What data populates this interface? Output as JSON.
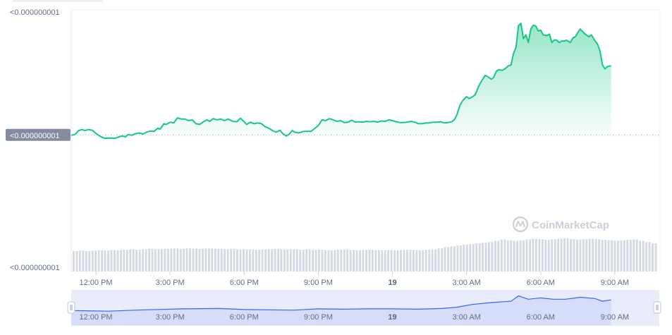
{
  "chart_data": {
    "type": "area",
    "y_axis_labels": [
      "<0.000000001",
      "<0.000000001"
    ],
    "current_price_label": "<0.000000001",
    "volume_axis_label": "<0.000000001",
    "x_ticks": [
      {
        "t": 1.0,
        "label": "12:00 PM",
        "bold": false
      },
      {
        "t": 4.0,
        "label": "3:00 PM",
        "bold": false
      },
      {
        "t": 7.0,
        "label": "6:00 PM",
        "bold": false
      },
      {
        "t": 10.0,
        "label": "9:00 PM",
        "bold": false
      },
      {
        "t": 13.0,
        "label": "19",
        "bold": true
      },
      {
        "t": 16.0,
        "label": "3:00 AM",
        "bold": false
      },
      {
        "t": 19.0,
        "label": "6:00 AM",
        "bold": false
      },
      {
        "t": 22.0,
        "label": "9:00 AM",
        "bold": false
      }
    ],
    "x_range_hours": [
      0,
      23.8
    ],
    "y_range_relative": [
      0.66,
      1.31
    ],
    "reference_value": 1.0,
    "price_series": [
      [
        0.0,
        1.0
      ],
      [
        0.15,
        1.002
      ],
      [
        0.3,
        1.012
      ],
      [
        0.45,
        1.015
      ],
      [
        0.55,
        1.012
      ],
      [
        0.7,
        1.015
      ],
      [
        0.85,
        1.013
      ],
      [
        1.0,
        1.005
      ],
      [
        1.15,
        0.998
      ],
      [
        1.35,
        0.992
      ],
      [
        1.55,
        0.993
      ],
      [
        1.75,
        0.992
      ],
      [
        1.95,
        0.996
      ],
      [
        2.05,
        0.998
      ],
      [
        2.2,
        0.996
      ],
      [
        2.3,
        1.002
      ],
      [
        2.45,
        1.0
      ],
      [
        2.6,
        1.004
      ],
      [
        2.75,
        1.006
      ],
      [
        2.9,
        1.003
      ],
      [
        3.05,
        1.008
      ],
      [
        3.2,
        1.011
      ],
      [
        3.35,
        1.01
      ],
      [
        3.5,
        1.018
      ],
      [
        3.6,
        1.016
      ],
      [
        3.75,
        1.03
      ],
      [
        3.85,
        1.028
      ],
      [
        4.0,
        1.034
      ],
      [
        4.15,
        1.032
      ],
      [
        4.3,
        1.045
      ],
      [
        4.45,
        1.042
      ],
      [
        4.6,
        1.042
      ],
      [
        4.75,
        1.038
      ],
      [
        4.9,
        1.04
      ],
      [
        5.05,
        1.03
      ],
      [
        5.2,
        1.028
      ],
      [
        5.35,
        1.035
      ],
      [
        5.5,
        1.04
      ],
      [
        5.6,
        1.036
      ],
      [
        5.75,
        1.043
      ],
      [
        5.9,
        1.04
      ],
      [
        6.05,
        1.042
      ],
      [
        6.2,
        1.038
      ],
      [
        6.35,
        1.042
      ],
      [
        6.55,
        1.036
      ],
      [
        6.7,
        1.035
      ],
      [
        6.85,
        1.044
      ],
      [
        6.95,
        1.038
      ],
      [
        7.1,
        1.028
      ],
      [
        7.25,
        1.034
      ],
      [
        7.4,
        1.03
      ],
      [
        7.55,
        1.032
      ],
      [
        7.7,
        1.03
      ],
      [
        7.85,
        1.022
      ],
      [
        8.0,
        1.018
      ],
      [
        8.15,
        1.012
      ],
      [
        8.3,
        1.008
      ],
      [
        8.45,
        1.013
      ],
      [
        8.55,
        1.005
      ],
      [
        8.7,
        0.998
      ],
      [
        8.8,
        1.002
      ],
      [
        8.95,
        1.012
      ],
      [
        9.05,
        1.008
      ],
      [
        9.2,
        1.006
      ],
      [
        9.4,
        1.01
      ],
      [
        9.55,
        1.01
      ],
      [
        9.7,
        1.01
      ],
      [
        9.8,
        1.015
      ],
      [
        10.0,
        1.025
      ],
      [
        10.15,
        1.04
      ],
      [
        10.3,
        1.038
      ],
      [
        10.45,
        1.043
      ],
      [
        10.6,
        1.04
      ],
      [
        10.75,
        1.036
      ],
      [
        10.9,
        1.038
      ],
      [
        11.05,
        1.033
      ],
      [
        11.2,
        1.034
      ],
      [
        11.35,
        1.039
      ],
      [
        11.5,
        1.034
      ],
      [
        11.65,
        1.035
      ],
      [
        11.8,
        1.034
      ],
      [
        11.95,
        1.036
      ],
      [
        12.1,
        1.035
      ],
      [
        12.25,
        1.036
      ],
      [
        12.4,
        1.034
      ],
      [
        12.55,
        1.037
      ],
      [
        12.7,
        1.036
      ],
      [
        12.85,
        1.04
      ],
      [
        13.0,
        1.038
      ],
      [
        13.15,
        1.035
      ],
      [
        13.3,
        1.033
      ],
      [
        13.45,
        1.033
      ],
      [
        13.6,
        1.034
      ],
      [
        13.75,
        1.036
      ],
      [
        13.9,
        1.034
      ],
      [
        14.05,
        1.03
      ],
      [
        14.2,
        1.03
      ],
      [
        14.35,
        1.032
      ],
      [
        14.5,
        1.032
      ],
      [
        14.65,
        1.034
      ],
      [
        14.8,
        1.034
      ],
      [
        14.95,
        1.035
      ],
      [
        15.1,
        1.032
      ],
      [
        15.25,
        1.033
      ],
      [
        15.4,
        1.035
      ],
      [
        15.5,
        1.04
      ],
      [
        15.6,
        1.052
      ],
      [
        15.75,
        1.08
      ],
      [
        15.85,
        1.09
      ],
      [
        16.0,
        1.1
      ],
      [
        16.1,
        1.095
      ],
      [
        16.25,
        1.1
      ],
      [
        16.35,
        1.105
      ],
      [
        16.5,
        1.128
      ],
      [
        16.65,
        1.145
      ],
      [
        16.75,
        1.155
      ],
      [
        16.85,
        1.152
      ],
      [
        17.0,
        1.145
      ],
      [
        17.1,
        1.15
      ],
      [
        17.2,
        1.165
      ],
      [
        17.3,
        1.17
      ],
      [
        17.45,
        1.168
      ],
      [
        17.55,
        1.172
      ],
      [
        17.7,
        1.18
      ],
      [
        17.8,
        1.182
      ],
      [
        17.9,
        1.212
      ],
      [
        18.0,
        1.228
      ],
      [
        18.1,
        1.284
      ],
      [
        18.2,
        1.29
      ],
      [
        18.3,
        1.25
      ],
      [
        18.4,
        1.26
      ],
      [
        18.5,
        1.24
      ],
      [
        18.6,
        1.275
      ],
      [
        18.7,
        1.285
      ],
      [
        18.8,
        1.283
      ],
      [
        18.9,
        1.27
      ],
      [
        19.0,
        1.272
      ],
      [
        19.1,
        1.26
      ],
      [
        19.25,
        1.258
      ],
      [
        19.35,
        1.262
      ],
      [
        19.45,
        1.24
      ],
      [
        19.55,
        1.247
      ],
      [
        19.65,
        1.246
      ],
      [
        19.75,
        1.24
      ],
      [
        19.85,
        1.244
      ],
      [
        19.95,
        1.244
      ],
      [
        20.05,
        1.246
      ],
      [
        20.2,
        1.24
      ],
      [
        20.3,
        1.252
      ],
      [
        20.4,
        1.255
      ],
      [
        20.5,
        1.266
      ],
      [
        20.6,
        1.275
      ],
      [
        20.7,
        1.268
      ],
      [
        20.8,
        1.262
      ],
      [
        20.95,
        1.255
      ],
      [
        21.05,
        1.26
      ],
      [
        21.2,
        1.244
      ],
      [
        21.3,
        1.236
      ],
      [
        21.4,
        1.218
      ],
      [
        21.5,
        1.182
      ],
      [
        21.6,
        1.172
      ],
      [
        21.7,
        1.178
      ],
      [
        21.85,
        1.18
      ]
    ],
    "volume_series_relative": [
      0.7,
      0.72,
      0.7,
      0.71,
      0.73,
      0.72,
      0.74,
      0.73,
      0.75,
      0.76,
      0.75,
      0.77,
      0.78,
      0.76,
      0.78,
      0.79,
      0.8,
      0.78,
      0.8,
      0.79,
      0.78,
      0.8,
      0.79,
      0.78,
      0.77,
      0.78,
      0.76,
      0.77,
      0.76,
      0.75,
      0.76,
      0.77,
      0.78,
      0.76,
      0.77,
      0.76,
      0.75,
      0.76,
      0.74,
      0.75,
      0.74,
      0.73,
      0.75,
      0.76,
      0.74,
      0.73,
      0.74,
      0.75,
      0.74,
      0.73,
      0.74,
      0.73,
      0.74,
      0.75,
      0.74,
      0.73,
      0.75,
      0.76,
      0.8,
      0.85,
      0.88,
      0.92,
      0.95,
      0.97,
      1.0,
      1.02,
      1.05,
      1.1,
      1.15,
      1.12,
      1.1,
      1.12,
      1.15,
      1.18,
      1.16,
      1.14,
      1.16,
      1.18,
      1.2,
      1.17,
      1.15,
      1.16,
      1.18,
      1.16,
      1.14,
      1.12,
      1.1,
      1.12,
      1.14,
      1.15,
      1.1,
      1.05,
      1.0
    ],
    "navigator_series": [
      [
        0,
        0.42
      ],
      [
        1.5,
        0.4
      ],
      [
        3,
        0.44
      ],
      [
        4.5,
        0.47
      ],
      [
        6,
        0.48
      ],
      [
        7,
        0.45
      ],
      [
        8,
        0.44
      ],
      [
        9,
        0.43
      ],
      [
        10,
        0.47
      ],
      [
        11,
        0.46
      ],
      [
        12,
        0.47
      ],
      [
        13,
        0.47
      ],
      [
        14,
        0.46
      ],
      [
        15,
        0.48
      ],
      [
        15.6,
        0.52
      ],
      [
        16.2,
        0.6
      ],
      [
        17,
        0.66
      ],
      [
        17.8,
        0.7
      ],
      [
        18.1,
        0.86
      ],
      [
        18.5,
        0.76
      ],
      [
        19,
        0.8
      ],
      [
        19.5,
        0.76
      ],
      [
        20,
        0.76
      ],
      [
        20.6,
        0.82
      ],
      [
        21.2,
        0.78
      ],
      [
        21.5,
        0.7
      ],
      [
        21.85,
        0.74
      ]
    ],
    "legend": "none",
    "grid": false
  },
  "watermark": {
    "text": "CoinMarketCap",
    "icon": "coinmarketcap-logo-icon"
  },
  "colors": {
    "up_line": "#16c784",
    "down_line": "#ea3943",
    "up_fill_top": "#16c784",
    "axis_text": "#616e85",
    "badge_bg": "#858ca2",
    "navigator_bg": "#e8ecfb",
    "navigator_line": "#3861fb",
    "volume_bar": "#d4d8e1"
  }
}
